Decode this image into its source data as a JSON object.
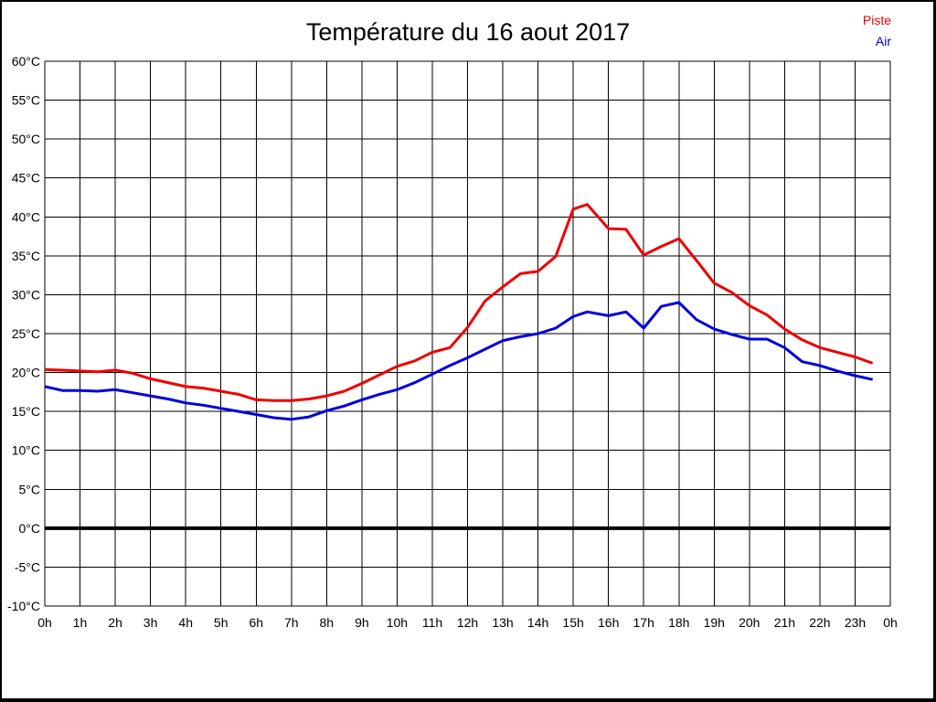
{
  "chart_data": {
    "type": "line",
    "title": "Température du 16 aout 2017",
    "x_unit": "hours",
    "xlim": [
      0,
      24
    ],
    "ylim": [
      -10,
      60
    ],
    "ytick_step": 5,
    "ytick_suffix": "°C",
    "xtick_labels": [
      "0h",
      "1h",
      "2h",
      "3h",
      "4h",
      "5h",
      "6h",
      "7h",
      "8h",
      "9h",
      "10h",
      "11h",
      "12h",
      "13h",
      "14h",
      "15h",
      "16h",
      "17h",
      "18h",
      "19h",
      "20h",
      "21h",
      "22h",
      "23h",
      "0h"
    ],
    "grid": true,
    "grid_color": "#000000",
    "zero_line": true,
    "zero_line_value": 0,
    "legend_position": "top-right",
    "series": [
      {
        "name": "Piste",
        "color": "#ee0000",
        "points": [
          [
            0,
            20.4
          ],
          [
            0.5,
            20.3
          ],
          [
            1,
            20.2
          ],
          [
            1.5,
            20.1
          ],
          [
            2,
            20.3
          ],
          [
            2.5,
            19.9
          ],
          [
            3,
            19.2
          ],
          [
            3.5,
            18.7
          ],
          [
            4,
            18.2
          ],
          [
            4.5,
            18.0
          ],
          [
            5,
            17.6
          ],
          [
            5.5,
            17.2
          ],
          [
            6,
            16.5
          ],
          [
            6.5,
            16.4
          ],
          [
            7,
            16.4
          ],
          [
            7.5,
            16.6
          ],
          [
            8,
            17.0
          ],
          [
            8.5,
            17.6
          ],
          [
            9,
            18.6
          ],
          [
            9.5,
            19.7
          ],
          [
            10,
            20.8
          ],
          [
            10.5,
            21.5
          ],
          [
            11,
            22.6
          ],
          [
            11.5,
            23.2
          ],
          [
            12,
            25.8
          ],
          [
            12.5,
            29.2
          ],
          [
            13,
            31.0
          ],
          [
            13.5,
            32.7
          ],
          [
            14,
            33.0
          ],
          [
            14.5,
            34.9
          ],
          [
            15,
            41.0
          ],
          [
            15.4,
            41.6
          ],
          [
            16,
            38.5
          ],
          [
            16.5,
            38.4
          ],
          [
            17,
            35.1
          ],
          [
            17.5,
            36.2
          ],
          [
            18,
            37.2
          ],
          [
            18.5,
            34.4
          ],
          [
            19,
            31.5
          ],
          [
            19.5,
            30.3
          ],
          [
            20,
            28.6
          ],
          [
            20.5,
            27.4
          ],
          [
            21,
            25.6
          ],
          [
            21.5,
            24.2
          ],
          [
            22,
            23.2
          ],
          [
            22.5,
            22.6
          ],
          [
            23,
            22.0
          ],
          [
            23.5,
            21.2
          ]
        ]
      },
      {
        "name": "Air",
        "color": "#0000dd",
        "points": [
          [
            0,
            18.2
          ],
          [
            0.5,
            17.7
          ],
          [
            1,
            17.7
          ],
          [
            1.5,
            17.6
          ],
          [
            2,
            17.8
          ],
          [
            2.5,
            17.4
          ],
          [
            3,
            17.0
          ],
          [
            3.5,
            16.6
          ],
          [
            4,
            16.1
          ],
          [
            4.5,
            15.8
          ],
          [
            5,
            15.4
          ],
          [
            5.5,
            15.0
          ],
          [
            6,
            14.6
          ],
          [
            6.5,
            14.2
          ],
          [
            7,
            14.0
          ],
          [
            7.5,
            14.3
          ],
          [
            8,
            15.1
          ],
          [
            8.5,
            15.7
          ],
          [
            9,
            16.5
          ],
          [
            9.5,
            17.2
          ],
          [
            10,
            17.8
          ],
          [
            10.5,
            18.7
          ],
          [
            11,
            19.8
          ],
          [
            11.5,
            20.9
          ],
          [
            12,
            21.9
          ],
          [
            12.5,
            23.0
          ],
          [
            13,
            24.1
          ],
          [
            13.5,
            24.6
          ],
          [
            14,
            25.0
          ],
          [
            14.5,
            25.7
          ],
          [
            15,
            27.2
          ],
          [
            15.4,
            27.8
          ],
          [
            16,
            27.3
          ],
          [
            16.5,
            27.8
          ],
          [
            17,
            25.7
          ],
          [
            17.5,
            28.5
          ],
          [
            18,
            29.0
          ],
          [
            18.5,
            26.8
          ],
          [
            19,
            25.6
          ],
          [
            19.5,
            24.9
          ],
          [
            20,
            24.3
          ],
          [
            20.5,
            24.3
          ],
          [
            21,
            23.2
          ],
          [
            21.5,
            21.4
          ],
          [
            22,
            20.9
          ],
          [
            22.5,
            20.2
          ],
          [
            23,
            19.6
          ],
          [
            23.5,
            19.1
          ]
        ]
      }
    ]
  }
}
